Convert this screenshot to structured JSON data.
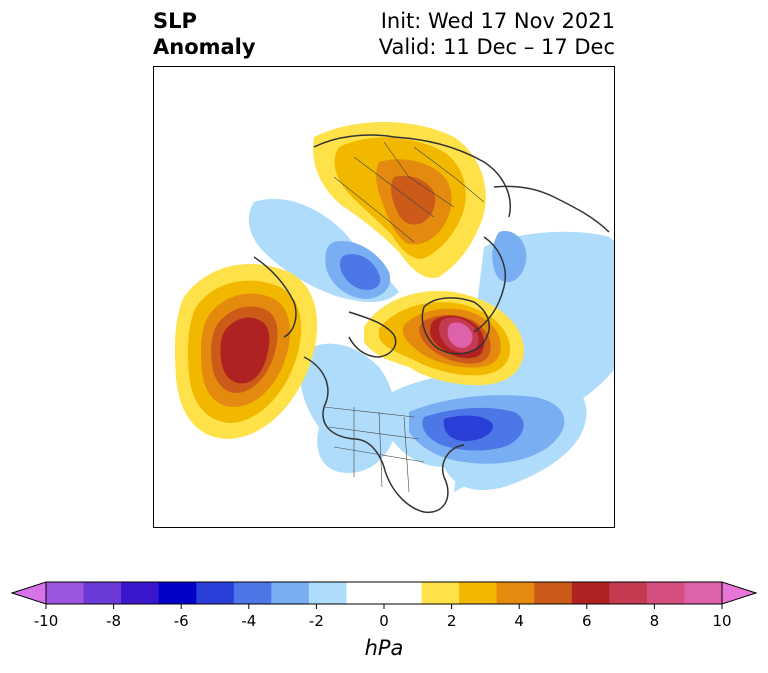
{
  "title": {
    "left_line1": "SLP",
    "left_line2": "Anomaly",
    "right_line1": "Init: Wed 17 Nov 2021",
    "right_line2": "Valid: 11 Dec – 17 Dec"
  },
  "colorbar": {
    "unit": "hPa",
    "min": -10,
    "max": 10,
    "step": 1,
    "tick_labels": [
      "-10",
      "-8",
      "-6",
      "-4",
      "-2",
      "0",
      "2",
      "4",
      "6",
      "8",
      "10"
    ],
    "colors": [
      "#9b55e0",
      "#6a3ad6",
      "#3a17cc",
      "#0000c8",
      "#2a3ed8",
      "#4d76e6",
      "#7aaef2",
      "#aedcfa",
      "#ffffff",
      "#ffffff",
      "#ffe24a",
      "#f2b800",
      "#e48a0e",
      "#cc5a18",
      "#b02222",
      "#c43a50",
      "#d44f80",
      "#de62aa"
    ],
    "extend_low_color": "#d673e8",
    "extend_high_color": "#e875d8"
  },
  "map": {
    "projection": "North Polar Stereographic",
    "variable": "SLP Anomaly"
  }
}
